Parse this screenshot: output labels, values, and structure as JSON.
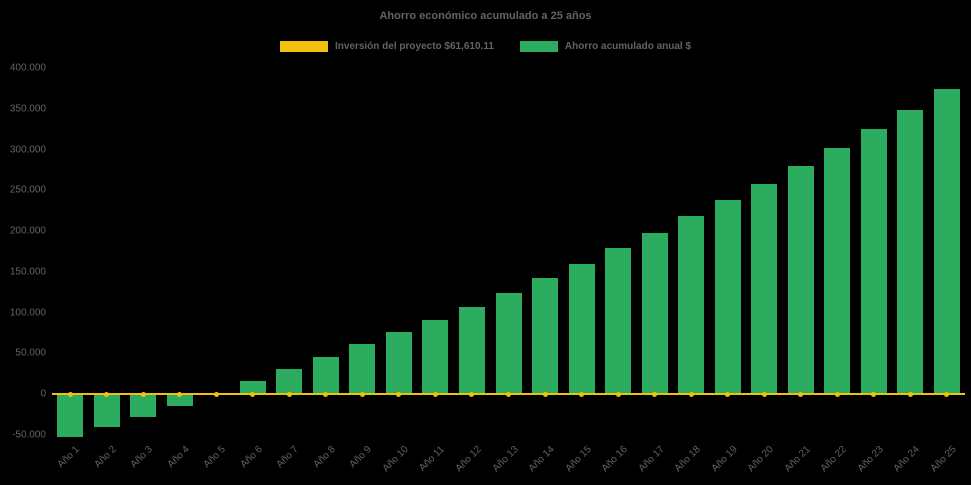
{
  "title": "Ahorro económico acumulado a 25 años",
  "legend": {
    "items": [
      {
        "label": "Inversión del proyecto $61,610.11",
        "swatch": "yellow-line-swatch",
        "color": "#F2C00E"
      },
      {
        "label": "Ahorro acumulado anual $",
        "swatch": "green-bar-swatch",
        "color": "#2BAC5E"
      }
    ]
  },
  "chart_data": {
    "type": "bar",
    "title": "Ahorro económico acumulado a 25 años",
    "categories": [
      "Año 1",
      "Año 2",
      "Año 3",
      "Año 4",
      "Año 5",
      "Año 6",
      "Año 7",
      "Año 8",
      "Año 9",
      "Año 10",
      "Año 11",
      "Año 12",
      "Año 13",
      "Año 14",
      "Año 15",
      "Año 16",
      "Año 17",
      "Año 18",
      "Año 19",
      "Año 20",
      "Año 21",
      "Año 22",
      "Año 23",
      "Año 24",
      "Año 25"
    ],
    "series": [
      {
        "name": "Ahorro acumulado anual $",
        "type": "bar",
        "color": "#2BAC5E",
        "values": [
          -52000,
          -40000,
          -28000,
          -14000,
          1500,
          16000,
          31000,
          46000,
          61000,
          76000,
          91000,
          107000,
          124000,
          142000,
          160000,
          179000,
          198000,
          218000,
          238000,
          258000,
          280000,
          302000,
          325000,
          349000,
          374000
        ]
      },
      {
        "name": "Inversión del proyecto $61,610.11",
        "type": "line",
        "color": "#F2C00E",
        "values": [
          0,
          0,
          0,
          0,
          0,
          0,
          0,
          0,
          0,
          0,
          0,
          0,
          0,
          0,
          0,
          0,
          0,
          0,
          0,
          0,
          0,
          0,
          0,
          0,
          0
        ]
      }
    ],
    "ylim": [
      -50000,
      400000
    ],
    "ytick_step": 50000,
    "ytick_labels": [
      "400.000",
      "350.000",
      "300.000",
      "250.000",
      "200.000",
      "150.000",
      "100.000",
      "50.000",
      "0",
      "-50.000"
    ],
    "grid": false,
    "legend_position": "top",
    "background": "#000000",
    "text_color": "#636363"
  }
}
